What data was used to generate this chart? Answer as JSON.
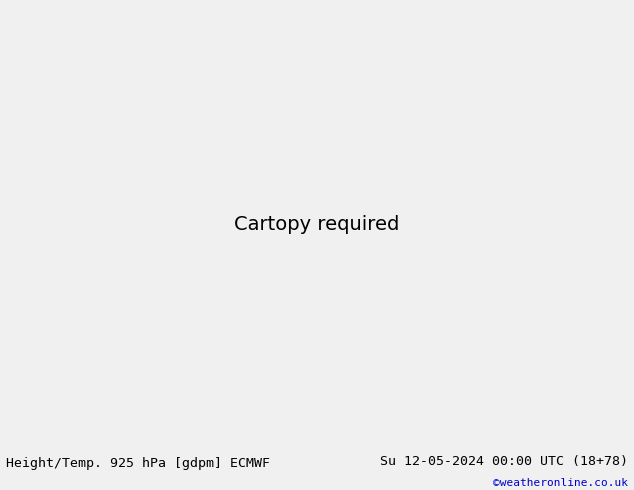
{
  "title_left": "Height/Temp. 925 hPa [gdpm] ECMWF",
  "title_right": "Su 12-05-2024 00:00 UTC (18+78)",
  "credit": "©weatheronline.co.uk",
  "fig_width": 6.34,
  "fig_height": 4.9,
  "dpi": 100,
  "bg_color": "#d8d8d8",
  "land_color": "#c8c8c8",
  "green_color": "#b4e68c",
  "title_fontsize": 9.5,
  "credit_fontsize": 8,
  "credit_color": "#0000cc",
  "lon_min": 88,
  "lon_max": 175,
  "lat_min": -18,
  "lat_max": 52
}
